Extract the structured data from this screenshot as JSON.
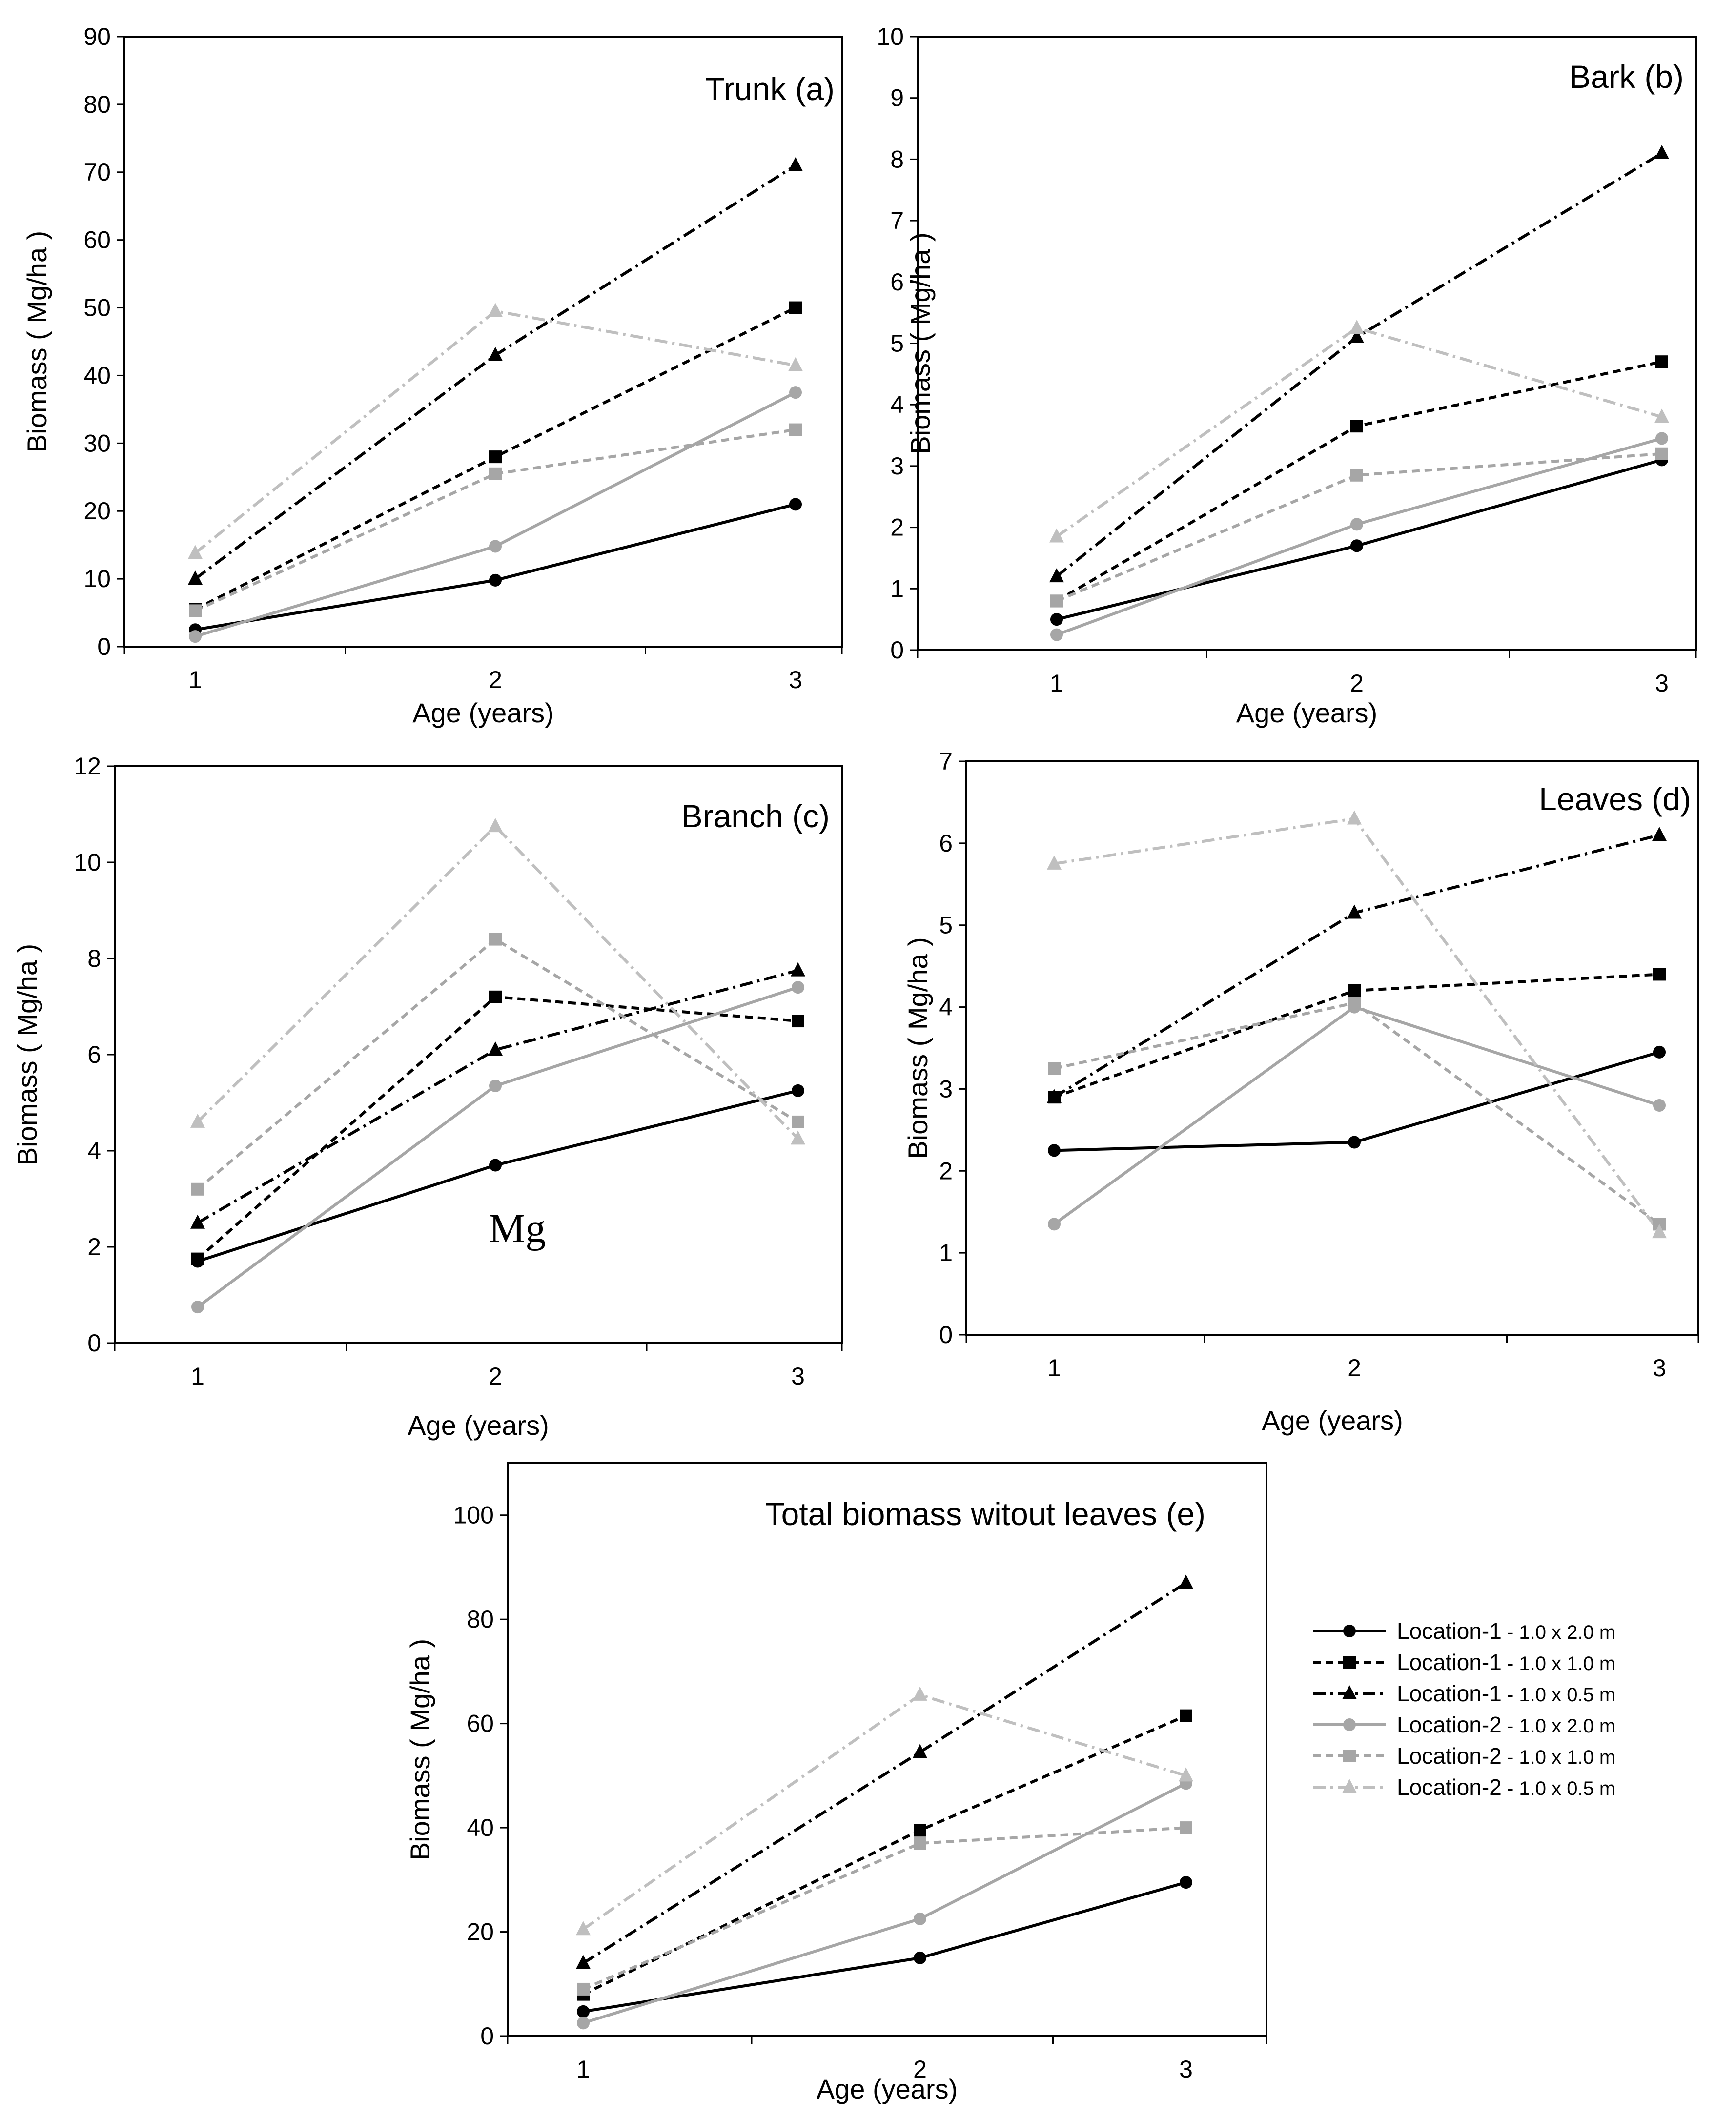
{
  "chart_data": [
    {
      "type": "line",
      "title": "Trunk (a)",
      "xlabel": "Age (years)",
      "ylabel": "Biomass ( Mg/ha )",
      "categories": [
        1,
        2,
        3
      ],
      "ylim": [
        0,
        90
      ],
      "yticks": [
        0,
        10,
        20,
        30,
        40,
        50,
        60,
        70,
        80,
        90
      ],
      "series": [
        {
          "name": "Location-1 - 1.0 x 2.0 m",
          "values": [
            2.5,
            9.8,
            21
          ]
        },
        {
          "name": "Location-1 - 1.0 x 1.0 m",
          "values": [
            5.5,
            28,
            50
          ]
        },
        {
          "name": "Location-1 - 1.0 x 0.5 m",
          "values": [
            10,
            43,
            71
          ]
        },
        {
          "name": "Location-2 - 1.0 x 2.0 m",
          "values": [
            1.5,
            14.8,
            37.5
          ]
        },
        {
          "name": "Location-2 - 1.0 x 1.0 m",
          "values": [
            5.3,
            25.5,
            32
          ]
        },
        {
          "name": "Location-2 - 1.0 x 0.5 m",
          "values": [
            13.8,
            49.5,
            41.5
          ]
        }
      ]
    },
    {
      "type": "line",
      "title": "Bark (b)",
      "xlabel": "Age (years)",
      "ylabel": "Biomass ( Mg/ha )",
      "categories": [
        1,
        2,
        3
      ],
      "ylim": [
        0,
        10
      ],
      "yticks": [
        0,
        1,
        2,
        3,
        4,
        5,
        6,
        7,
        8,
        9,
        10
      ],
      "series": [
        {
          "name": "Location-1 - 1.0 x 2.0 m",
          "values": [
            0.5,
            1.7,
            3.1
          ]
        },
        {
          "name": "Location-1 - 1.0 x 1.0 m",
          "values": [
            0.8,
            3.65,
            4.7
          ]
        },
        {
          "name": "Location-1 - 1.0 x 0.5 m",
          "values": [
            1.2,
            5.1,
            8.1
          ]
        },
        {
          "name": "Location-2 - 1.0 x 2.0 m",
          "values": [
            0.25,
            2.05,
            3.45
          ]
        },
        {
          "name": "Location-2 - 1.0 x 1.0 m",
          "values": [
            0.8,
            2.85,
            3.2
          ]
        },
        {
          "name": "Location-2 - 1.0 x 0.5 m",
          "values": [
            1.85,
            5.25,
            3.8
          ]
        }
      ]
    },
    {
      "type": "line",
      "title": "Branch (c)",
      "xlabel": "Age (years)",
      "ylabel": "Biomass ( Mg/ha )",
      "annotation": "Mg",
      "categories": [
        1,
        2,
        3
      ],
      "ylim": [
        0,
        12
      ],
      "yticks": [
        0,
        2,
        4,
        6,
        8,
        10,
        12
      ],
      "series": [
        {
          "name": "Location-1 - 1.0 x 2.0 m",
          "values": [
            1.7,
            3.7,
            5.25
          ]
        },
        {
          "name": "Location-1 - 1.0 x 1.0 m",
          "values": [
            1.75,
            7.2,
            6.7
          ]
        },
        {
          "name": "Location-1 - 1.0 x 0.5 m",
          "values": [
            2.5,
            6.1,
            7.75
          ]
        },
        {
          "name": "Location-2 - 1.0 x 2.0 m",
          "values": [
            0.75,
            5.35,
            7.4
          ]
        },
        {
          "name": "Location-2 - 1.0 x 1.0 m",
          "values": [
            3.2,
            8.4,
            4.6
          ]
        },
        {
          "name": "Location-2 - 1.0 x 0.5 m",
          "values": [
            4.6,
            10.75,
            4.25
          ]
        }
      ]
    },
    {
      "type": "line",
      "title": "Leaves (d)",
      "xlabel": "Age (years)",
      "ylabel": "Biomass ( Mg/ha )",
      "categories": [
        1,
        2,
        3
      ],
      "ylim": [
        0,
        7
      ],
      "yticks": [
        0,
        1,
        2,
        3,
        4,
        5,
        6,
        7
      ],
      "series": [
        {
          "name": "Location-1 - 1.0 x 2.0 m",
          "values": [
            2.25,
            2.35,
            3.45
          ]
        },
        {
          "name": "Location-1 - 1.0 x 1.0 m",
          "values": [
            2.9,
            4.2,
            4.4
          ]
        },
        {
          "name": "Location-1 - 1.0 x 0.5 m",
          "values": [
            2.9,
            5.15,
            6.1
          ]
        },
        {
          "name": "Location-2 - 1.0 x 2.0 m",
          "values": [
            1.35,
            4.0,
            2.8
          ]
        },
        {
          "name": "Location-2 - 1.0 x 1.0 m",
          "values": [
            3.25,
            4.05,
            1.35
          ]
        },
        {
          "name": "Location-2 - 1.0 x 0.5 m",
          "values": [
            5.75,
            6.3,
            1.25
          ]
        }
      ]
    },
    {
      "type": "line",
      "title": "Total biomass witout leaves (e)",
      "xlabel": "Age (years)",
      "ylabel": "Biomass ( Mg/ha )",
      "categories": [
        1,
        2,
        3
      ],
      "ylim": [
        0,
        110
      ],
      "yticks": [
        0,
        20,
        40,
        60,
        80,
        100
      ],
      "series": [
        {
          "name": "Location-1 - 1.0 x 2.0 m",
          "values": [
            4.7,
            15,
            29.5
          ]
        },
        {
          "name": "Location-1 - 1.0 x 1.0 m",
          "values": [
            8,
            39.5,
            61.5
          ]
        },
        {
          "name": "Location-1 - 1.0 x 0.5 m",
          "values": [
            14,
            54.5,
            87
          ]
        },
        {
          "name": "Location-2 - 1.0 x 2.0 m",
          "values": [
            2.5,
            22.5,
            48.5
          ]
        },
        {
          "name": "Location-2 - 1.0 x 1.0 m",
          "values": [
            9,
            37,
            40
          ]
        },
        {
          "name": "Location-2 - 1.0 x 0.5 m",
          "values": [
            20.5,
            65.5,
            50
          ]
        }
      ]
    }
  ],
  "series_style": [
    {
      "color": "#000000",
      "dash": "",
      "marker": "circle"
    },
    {
      "color": "#000000",
      "dash": "16,10",
      "marker": "square"
    },
    {
      "color": "#000000",
      "dash": "26,10,5,10",
      "marker": "triangle"
    },
    {
      "color": "#a6a6a6",
      "dash": "",
      "marker": "circle"
    },
    {
      "color": "#a6a6a6",
      "dash": "16,10",
      "marker": "square"
    },
    {
      "color": "#bfbfbf",
      "dash": "26,10,5,10",
      "marker": "triangle"
    }
  ],
  "legend": {
    "entries": [
      {
        "location": "Location-1",
        "spacing": " - 1.0 x 2.0 m"
      },
      {
        "location": "Location-1",
        "spacing": " - 1.0 x 1.0 m"
      },
      {
        "location": "Location-1",
        "spacing": " - 1.0 x 0.5 m"
      },
      {
        "location": "Location-2",
        "spacing": " - 1.0 x 2.0 m"
      },
      {
        "location": "Location-2",
        "spacing": " - 1.0 x 1.0 m"
      },
      {
        "location": "Location-2",
        "spacing": " - 1.0 x 0.5 m"
      }
    ]
  }
}
